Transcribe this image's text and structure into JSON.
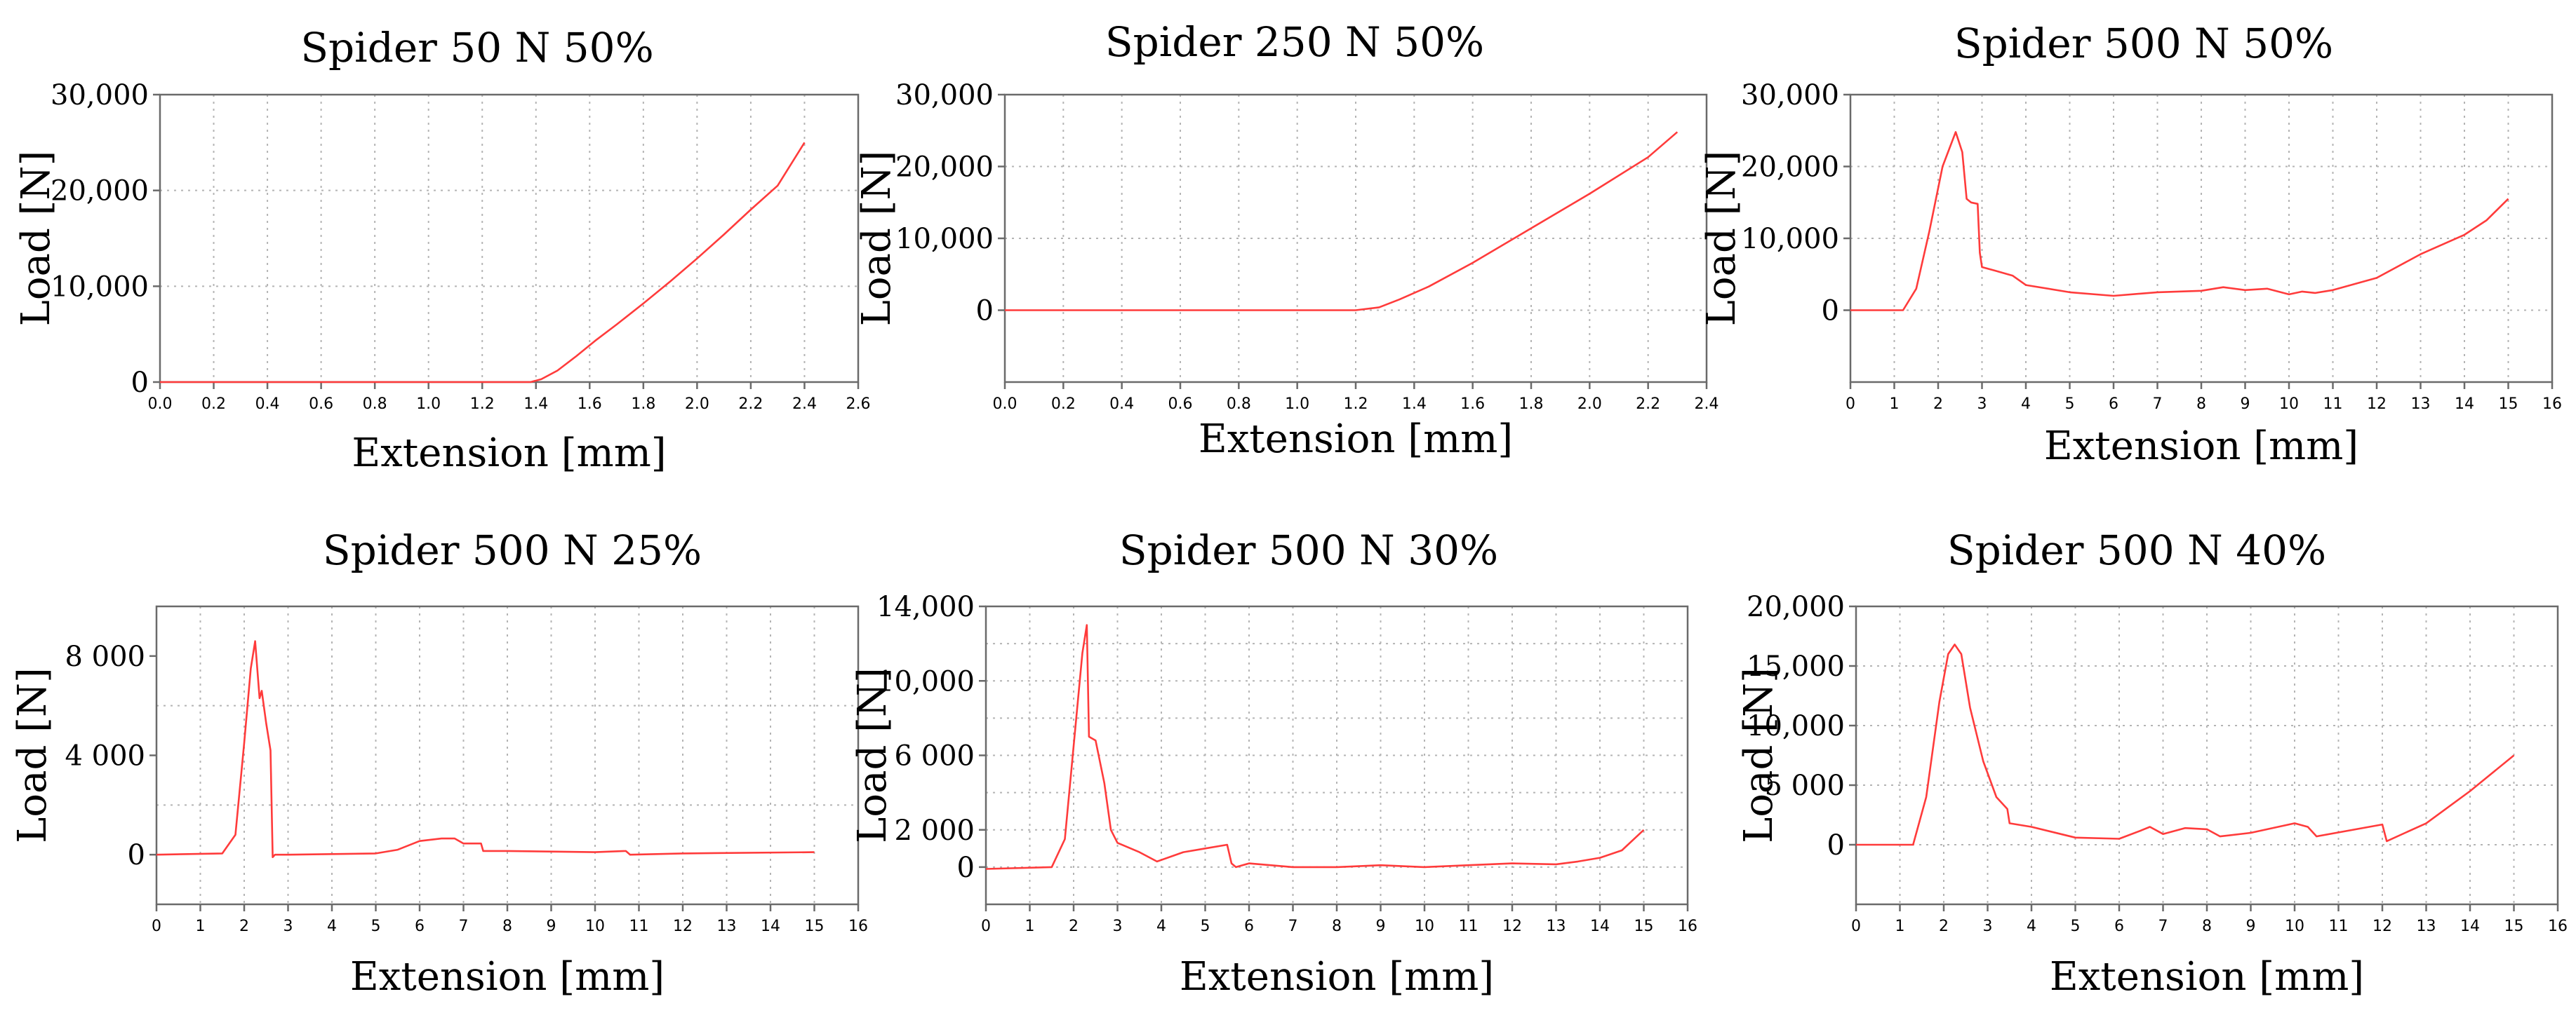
{
  "chart_data": [
    {
      "type": "line",
      "title": "Spider 50 N 50%",
      "xlabel": "Extension [mm]",
      "ylabel": "Load [N]",
      "xlim": [
        0,
        2.6
      ],
      "ylim": [
        0,
        30000
      ],
      "grid": true,
      "xticks": [
        0,
        0.2,
        0.4,
        0.6,
        0.8,
        1.0,
        1.2,
        1.4,
        1.6,
        1.8,
        2.0,
        2.2,
        2.4,
        2.6
      ],
      "xtick_labels": [
        "0.0",
        "0.2",
        "0.4",
        "0.6",
        "0.8",
        "1.0",
        "1.2",
        "1.4",
        "1.6",
        "1.8",
        "2.0",
        "2.2",
        "2.4",
        "2.6"
      ],
      "yticks": [
        0,
        10000,
        20000,
        30000
      ],
      "ytick_labels": [
        "0",
        "10,000",
        "20,000",
        "30,000"
      ],
      "series": [
        {
          "name": "Spider 50 N 50%",
          "color": "#ff3b3b",
          "x": [
            0,
            1.38,
            1.42,
            1.48,
            1.55,
            1.62,
            1.7,
            1.8,
            1.9,
            2.0,
            2.1,
            2.2,
            2.3,
            2.4
          ],
          "y": [
            0,
            0,
            300,
            1200,
            2700,
            4300,
            6000,
            8200,
            10500,
            12900,
            15400,
            18000,
            20500,
            25000
          ]
        }
      ]
    },
    {
      "type": "line",
      "title": "Spider 250 N 50%",
      "xlabel": "Extension [mm]",
      "ylabel": "Load [N]",
      "xlim": [
        0,
        2.4
      ],
      "ylim": [
        -10000,
        30000
      ],
      "grid": true,
      "xticks": [
        0,
        0.2,
        0.4,
        0.6,
        0.8,
        1.0,
        1.2,
        1.4,
        1.6,
        1.8,
        2.0,
        2.2,
        2.4
      ],
      "xtick_labels": [
        "0.0",
        "0.2",
        "0.4",
        "0.6",
        "0.8",
        "1.0",
        "1.2",
        "1.4",
        "1.6",
        "1.8",
        "2.0",
        "2.2",
        "2.4"
      ],
      "yticks": [
        0,
        10000,
        20000,
        30000
      ],
      "ytick_labels": [
        "0",
        "10,000",
        "20,000",
        "30,000"
      ],
      "series": [
        {
          "name": "Spider 250 N 50%",
          "color": "#ff3b3b",
          "x": [
            0,
            1.2,
            1.28,
            1.35,
            1.45,
            1.6,
            1.8,
            2.0,
            2.2,
            2.3
          ],
          "y": [
            0,
            0,
            400,
            1500,
            3300,
            6600,
            11400,
            16200,
            21300,
            24800
          ]
        }
      ]
    },
    {
      "type": "line",
      "title": "Spider 500 N 50%",
      "xlabel": "Extension [mm]",
      "ylabel": "Load [N]",
      "xlim": [
        0,
        16
      ],
      "ylim": [
        -10000,
        30000
      ],
      "grid": true,
      "xticks": [
        0,
        1,
        2,
        3,
        4,
        5,
        6,
        7,
        8,
        9,
        10,
        11,
        12,
        13,
        14,
        15,
        16
      ],
      "xtick_labels": [
        "0",
        "1",
        "2",
        "3",
        "4",
        "5",
        "6",
        "7",
        "8",
        "9",
        "10",
        "11",
        "12",
        "13",
        "14",
        "15",
        "16"
      ],
      "yticks": [
        0,
        10000,
        20000,
        30000
      ],
      "ytick_labels": [
        "0",
        "10,000",
        "20,000",
        "30,000"
      ],
      "series": [
        {
          "name": "Spider 500 N 50%",
          "color": "#ff3b3b",
          "x": [
            0,
            1.2,
            1.5,
            1.8,
            2.1,
            2.4,
            2.55,
            2.65,
            2.75,
            2.9,
            2.95,
            3.0,
            3.3,
            3.7,
            4.0,
            5.0,
            6.0,
            7.0,
            8.0,
            8.5,
            9.0,
            9.5,
            10.0,
            10.3,
            10.6,
            11.0,
            12.0,
            13.0,
            14.0,
            14.5,
            15.0
          ],
          "y": [
            0,
            0,
            3000,
            11000,
            20000,
            24800,
            22000,
            15500,
            15000,
            14800,
            8000,
            6000,
            5500,
            4800,
            3500,
            2500,
            2000,
            2500,
            2700,
            3200,
            2800,
            3000,
            2200,
            2600,
            2400,
            2800,
            4500,
            7800,
            10500,
            12500,
            15500
          ]
        }
      ]
    },
    {
      "type": "line",
      "title": "Spider 500 N 25%",
      "xlabel": "Extension [mm]",
      "ylabel": "Load [N]",
      "xlim": [
        0,
        16
      ],
      "ylim": [
        -2000,
        10000
      ],
      "grid": true,
      "xticks": [
        0,
        1,
        2,
        3,
        4,
        5,
        6,
        7,
        8,
        9,
        10,
        11,
        12,
        13,
        14,
        15,
        16
      ],
      "xtick_labels": [
        "0",
        "1",
        "2",
        "3",
        "4",
        "5",
        "6",
        "7",
        "8",
        "9",
        "10",
        "11",
        "12",
        "13",
        "14",
        "15",
        "16"
      ],
      "yticks": [
        0,
        4000,
        8000
      ],
      "ytick_labels": [
        "0",
        "4 000",
        "8 000"
      ],
      "series": [
        {
          "name": "Spider 500 N 25%",
          "color": "#ff3b3b",
          "x": [
            0,
            1.5,
            1.8,
            2.0,
            2.15,
            2.25,
            2.35,
            2.4,
            2.5,
            2.6,
            2.65,
            2.7,
            3.0,
            5.0,
            5.5,
            6.0,
            6.5,
            6.8,
            7.0,
            7.4,
            7.45,
            8.0,
            10.0,
            10.7,
            10.8,
            12.0,
            15.0
          ],
          "y": [
            0,
            50,
            800,
            4500,
            7500,
            8600,
            6300,
            6600,
            5300,
            4200,
            -100,
            0,
            0,
            50,
            200,
            550,
            650,
            650,
            450,
            450,
            150,
            150,
            100,
            150,
            0,
            50,
            100
          ]
        }
      ]
    },
    {
      "type": "line",
      "title": "Spider 500 N 30%",
      "xlabel": "Extension [mm]",
      "ylabel": "Load [N]",
      "xlim": [
        0,
        16
      ],
      "ylim": [
        -2000,
        14000
      ],
      "grid": true,
      "xticks": [
        0,
        1,
        2,
        3,
        4,
        5,
        6,
        7,
        8,
        9,
        10,
        11,
        12,
        13,
        14,
        15,
        16
      ],
      "xtick_labels": [
        "0",
        "1",
        "2",
        "3",
        "4",
        "5",
        "6",
        "7",
        "8",
        "9",
        "10",
        "11",
        "12",
        "13",
        "14",
        "15",
        "16"
      ],
      "yticks": [
        0,
        2000,
        6000,
        10000,
        14000
      ],
      "ytick_labels": [
        "0",
        "2 000",
        "6 000",
        "10,000",
        "14,000"
      ],
      "series": [
        {
          "name": "Spider 500 N 30%",
          "color": "#ff3b3b",
          "x": [
            0,
            1.5,
            1.8,
            2.0,
            2.2,
            2.3,
            2.35,
            2.5,
            2.7,
            2.85,
            3.0,
            3.5,
            3.9,
            4.5,
            5.0,
            5.5,
            5.6,
            5.7,
            6.0,
            7.0,
            8.0,
            9.0,
            10.0,
            11.0,
            12.0,
            13.0,
            13.5,
            14.0,
            14.5,
            15.0
          ],
          "y": [
            -100,
            0,
            1500,
            6500,
            11500,
            13000,
            7000,
            6800,
            4500,
            2000,
            1300,
            800,
            300,
            800,
            1000,
            1200,
            200,
            0,
            200,
            0,
            0,
            100,
            0,
            100,
            200,
            150,
            300,
            500,
            900,
            2000
          ]
        }
      ]
    },
    {
      "type": "line",
      "title": "Spider 500 N 40%",
      "xlabel": "Extension [mm]",
      "ylabel": "Load [N]",
      "xlim": [
        0,
        16
      ],
      "ylim": [
        -5000,
        20000
      ],
      "grid": true,
      "xticks": [
        0,
        1,
        2,
        3,
        4,
        5,
        6,
        7,
        8,
        9,
        10,
        11,
        12,
        13,
        14,
        15,
        16
      ],
      "xtick_labels": [
        "0",
        "1",
        "2",
        "3",
        "4",
        "5",
        "6",
        "7",
        "8",
        "9",
        "10",
        "11",
        "12",
        "13",
        "14",
        "15",
        "16"
      ],
      "yticks": [
        0,
        5000,
        10000,
        15000,
        20000
      ],
      "ytick_labels": [
        "0",
        "5 000",
        "10,000",
        "15,000",
        "20,000"
      ],
      "series": [
        {
          "name": "Spider 500 N 40%",
          "color": "#ff3b3b",
          "x": [
            0,
            1.3,
            1.6,
            1.9,
            2.1,
            2.25,
            2.4,
            2.6,
            2.9,
            3.2,
            3.45,
            3.5,
            4.0,
            5.0,
            6.0,
            6.5,
            6.7,
            7.0,
            7.5,
            8.0,
            8.3,
            9.0,
            10.0,
            10.3,
            10.5,
            12.0,
            12.1,
            13.0,
            14.0,
            15.0
          ],
          "y": [
            0,
            0,
            4000,
            12000,
            16000,
            16800,
            16000,
            11500,
            7000,
            4000,
            3000,
            1800,
            1500,
            600,
            500,
            1200,
            1500,
            900,
            1400,
            1300,
            700,
            1000,
            1800,
            1500,
            700,
            1700,
            300,
            1800,
            4500,
            7500
          ]
        }
      ]
    }
  ]
}
